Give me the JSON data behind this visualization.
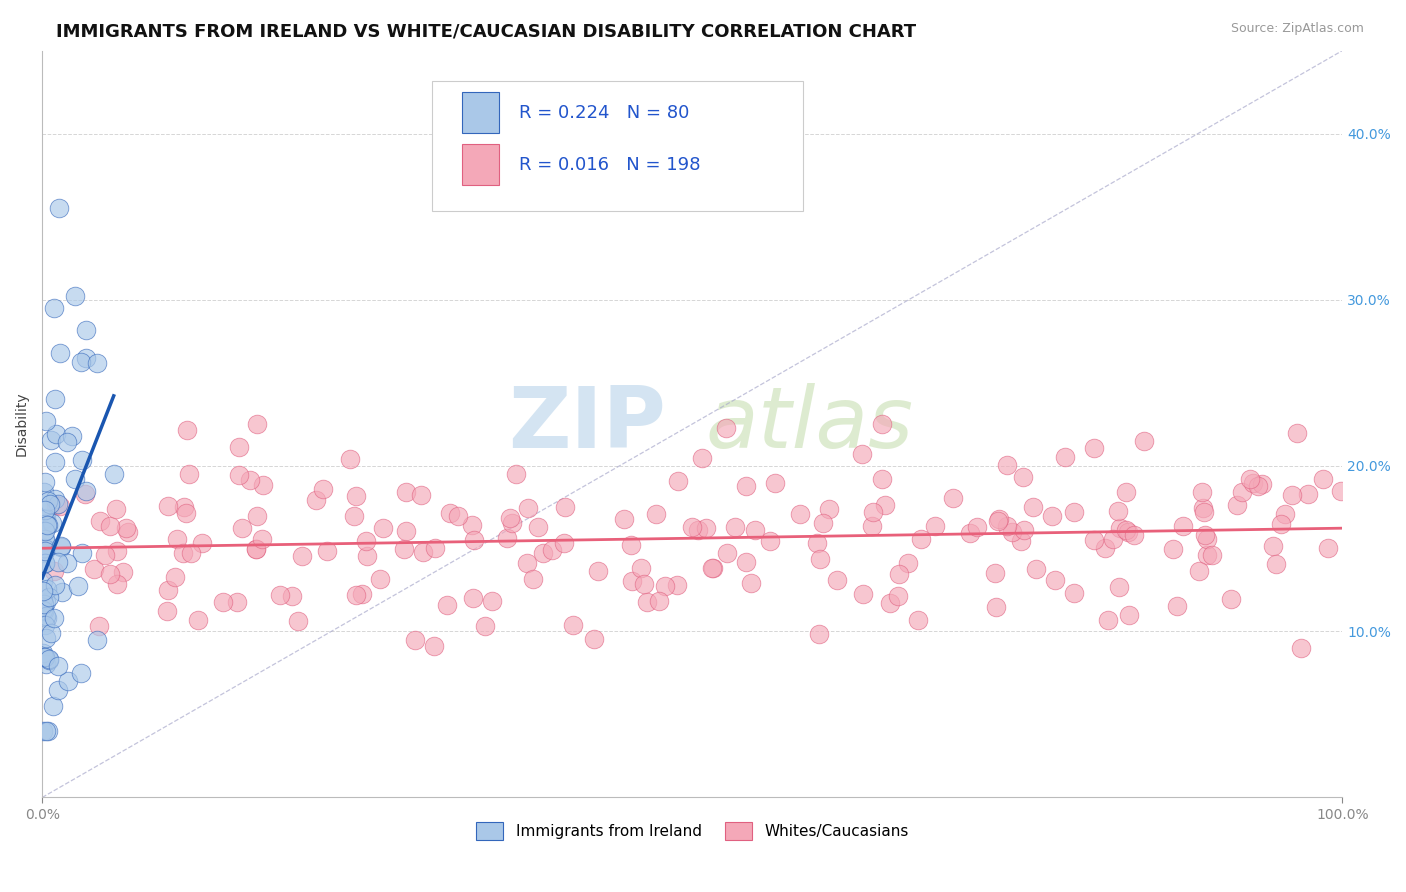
{
  "title": "IMMIGRANTS FROM IRELAND VS WHITE/CAUCASIAN DISABILITY CORRELATION CHART",
  "source": "Source: ZipAtlas.com",
  "ylabel": "Disability",
  "xlim": [
    0,
    1.0
  ],
  "ylim": [
    0,
    0.45
  ],
  "ytick_values": [
    0.1,
    0.2,
    0.3,
    0.4
  ],
  "blue_R": 0.224,
  "blue_N": 80,
  "pink_R": 0.016,
  "pink_N": 198,
  "blue_fill": "#aac8e8",
  "blue_edge": "#3366bb",
  "pink_fill": "#f4a8b8",
  "pink_edge": "#e06080",
  "blue_line": "#1a56b0",
  "pink_line": "#e8607a",
  "blue_label": "Immigrants from Ireland",
  "pink_label": "Whites/Caucasians",
  "watermark_zip": "ZIP",
  "watermark_atlas": "atlas",
  "grid_color": "#cccccc",
  "diag_color": "#aaaacc",
  "title_fontsize": 13,
  "right_tick_color": "#4499dd",
  "legend_text_color": "#2255cc"
}
